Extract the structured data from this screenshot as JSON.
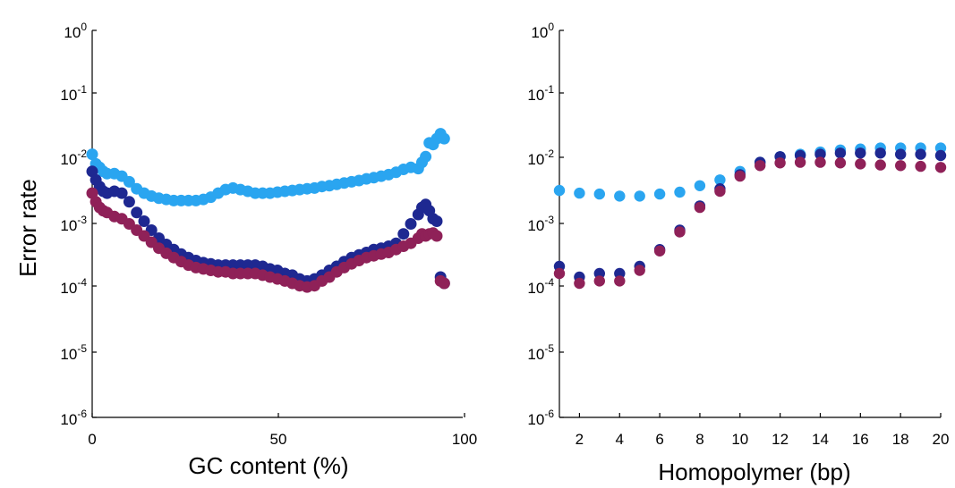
{
  "colors": {
    "light": "#2aa5f0",
    "dark": "#1e2891",
    "maroon": "#8f2158"
  },
  "ylabel": "Error rate",
  "chart_data": [
    {
      "type": "scatter",
      "xlabel": "GC content (%)",
      "ylabel": "Error rate",
      "yscale": "log",
      "xlim": [
        0,
        100
      ],
      "ylim": [
        1e-06,
        1
      ],
      "x_ticks": [
        "0",
        "50",
        "100"
      ],
      "y_ticks": [
        "10^0",
        "10^-1",
        "10^-2",
        "10^-3",
        "10^-4",
        "10^-5",
        "10^-6"
      ],
      "grid": false,
      "series": [
        {
          "color": "light",
          "points": [
            [
              0,
              0.012
            ],
            [
              1,
              0.0085
            ],
            [
              2,
              0.0075
            ],
            [
              3,
              0.0065
            ],
            [
              4,
              0.006
            ],
            [
              6,
              0.006
            ],
            [
              8,
              0.0055
            ],
            [
              10,
              0.0045
            ],
            [
              12,
              0.0035
            ],
            [
              14,
              0.003
            ],
            [
              16,
              0.0027
            ],
            [
              18,
              0.0025
            ],
            [
              20,
              0.0024
            ],
            [
              22,
              0.0023
            ],
            [
              24,
              0.0023
            ],
            [
              26,
              0.0023
            ],
            [
              28,
              0.0023
            ],
            [
              30,
              0.0024
            ],
            [
              32,
              0.0026
            ],
            [
              34,
              0.003
            ],
            [
              36,
              0.0034
            ],
            [
              38,
              0.0036
            ],
            [
              40,
              0.0034
            ],
            [
              42,
              0.0032
            ],
            [
              44,
              0.003
            ],
            [
              46,
              0.003
            ],
            [
              48,
              0.003
            ],
            [
              50,
              0.0031
            ],
            [
              52,
              0.0032
            ],
            [
              54,
              0.0033
            ],
            [
              56,
              0.0034
            ],
            [
              58,
              0.0035
            ],
            [
              60,
              0.0036
            ],
            [
              62,
              0.0038
            ],
            [
              64,
              0.0039
            ],
            [
              66,
              0.0041
            ],
            [
              68,
              0.0043
            ],
            [
              70,
              0.0045
            ],
            [
              72,
              0.0047
            ],
            [
              74,
              0.005
            ],
            [
              76,
              0.0052
            ],
            [
              78,
              0.0055
            ],
            [
              80,
              0.0058
            ],
            [
              82,
              0.0063
            ],
            [
              84,
              0.007
            ],
            [
              86,
              0.0075
            ],
            [
              88,
              0.0072
            ],
            [
              89,
              0.009
            ],
            [
              90,
              0.011
            ],
            [
              91,
              0.018
            ],
            [
              92,
              0.017
            ],
            [
              93,
              0.021
            ],
            [
              94,
              0.025
            ],
            [
              95,
              0.021
            ]
          ]
        },
        {
          "color": "dark",
          "points": [
            [
              0,
              0.0065
            ],
            [
              1,
              0.0048
            ],
            [
              2,
              0.0038
            ],
            [
              3,
              0.0032
            ],
            [
              4,
              0.003
            ],
            [
              6,
              0.0032
            ],
            [
              8,
              0.003
            ],
            [
              10,
              0.0022
            ],
            [
              12,
              0.0015
            ],
            [
              14,
              0.0011
            ],
            [
              16,
              0.0008
            ],
            [
              18,
              0.0006
            ],
            [
              20,
              0.00048
            ],
            [
              22,
              0.0004
            ],
            [
              24,
              0.00034
            ],
            [
              26,
              0.0003
            ],
            [
              28,
              0.00027
            ],
            [
              30,
              0.00025
            ],
            [
              32,
              0.00024
            ],
            [
              34,
              0.00023
            ],
            [
              36,
              0.00023
            ],
            [
              38,
              0.00023
            ],
            [
              40,
              0.00023
            ],
            [
              42,
              0.00023
            ],
            [
              44,
              0.00023
            ],
            [
              46,
              0.00022
            ],
            [
              48,
              0.0002
            ],
            [
              50,
              0.00019
            ],
            [
              52,
              0.00017
            ],
            [
              54,
              0.00016
            ],
            [
              56,
              0.00014
            ],
            [
              58,
              0.00013
            ],
            [
              60,
              0.00014
            ],
            [
              62,
              0.00016
            ],
            [
              64,
              0.00019
            ],
            [
              66,
              0.00022
            ],
            [
              68,
              0.00026
            ],
            [
              70,
              0.0003
            ],
            [
              72,
              0.00033
            ],
            [
              74,
              0.00036
            ],
            [
              76,
              0.0004
            ],
            [
              78,
              0.00042
            ],
            [
              80,
              0.00045
            ],
            [
              82,
              0.0005
            ],
            [
              84,
              0.0007
            ],
            [
              86,
              0.001
            ],
            [
              88,
              0.0014
            ],
            [
              89,
              0.0018
            ],
            [
              90,
              0.002
            ],
            [
              91,
              0.0016
            ],
            [
              92,
              0.0012
            ],
            [
              93,
              0.0011
            ],
            [
              94,
              0.00015
            ],
            [
              95,
              0.00012
            ]
          ]
        },
        {
          "color": "maroon",
          "points": [
            [
              0,
              0.003
            ],
            [
              1,
              0.0022
            ],
            [
              2,
              0.0018
            ],
            [
              3,
              0.0016
            ],
            [
              4,
              0.0015
            ],
            [
              6,
              0.0013
            ],
            [
              8,
              0.0012
            ],
            [
              10,
              0.001
            ],
            [
              12,
              0.0008
            ],
            [
              14,
              0.00065
            ],
            [
              16,
              0.00052
            ],
            [
              18,
              0.00042
            ],
            [
              20,
              0.00035
            ],
            [
              22,
              0.0003
            ],
            [
              24,
              0.00026
            ],
            [
              26,
              0.00023
            ],
            [
              28,
              0.00021
            ],
            [
              30,
              0.0002
            ],
            [
              32,
              0.00019
            ],
            [
              34,
              0.00018
            ],
            [
              36,
              0.00018
            ],
            [
              38,
              0.00017
            ],
            [
              40,
              0.00017
            ],
            [
              42,
              0.00017
            ],
            [
              44,
              0.00017
            ],
            [
              46,
              0.00016
            ],
            [
              48,
              0.00015
            ],
            [
              50,
              0.00014
            ],
            [
              52,
              0.00013
            ],
            [
              54,
              0.00012
            ],
            [
              56,
              0.00011
            ],
            [
              58,
              0.000105
            ],
            [
              60,
              0.00011
            ],
            [
              62,
              0.00013
            ],
            [
              64,
              0.00015
            ],
            [
              66,
              0.00018
            ],
            [
              68,
              0.00021
            ],
            [
              70,
              0.00024
            ],
            [
              72,
              0.00027
            ],
            [
              74,
              0.0003
            ],
            [
              76,
              0.00032
            ],
            [
              78,
              0.00034
            ],
            [
              80,
              0.00036
            ],
            [
              82,
              0.0004
            ],
            [
              84,
              0.00045
            ],
            [
              86,
              0.0005
            ],
            [
              88,
              0.0006
            ],
            [
              89,
              0.0007
            ],
            [
              90,
              0.00065
            ],
            [
              91,
              0.0007
            ],
            [
              92,
              0.00072
            ],
            [
              93,
              0.00065
            ],
            [
              94,
              0.00013
            ],
            [
              95,
              0.00012
            ]
          ]
        }
      ]
    },
    {
      "type": "scatter",
      "xlabel": "Homopolymer (bp)",
      "ylabel": "",
      "yscale": "log",
      "xlim": [
        1,
        20
      ],
      "ylim": [
        1e-06,
        1
      ],
      "x_ticks": [
        "2",
        "4",
        "6",
        "8",
        "10",
        "12",
        "14",
        "16",
        "18",
        "20"
      ],
      "y_ticks": [
        "10^0",
        "10^-1",
        "10^-2",
        "10^-3",
        "10^-4",
        "10^-5",
        "10^-6"
      ],
      "grid": false,
      "series": [
        {
          "color": "light",
          "points": [
            [
              1,
              0.0033
            ],
            [
              2,
              0.003
            ],
            [
              3,
              0.0029
            ],
            [
              4,
              0.0027
            ],
            [
              5,
              0.0027
            ],
            [
              6,
              0.0029
            ],
            [
              7,
              0.0031
            ],
            [
              8,
              0.0039
            ],
            [
              9,
              0.0048
            ],
            [
              10,
              0.0065
            ],
            [
              11,
              0.009
            ],
            [
              12,
              0.011
            ],
            [
              13,
              0.012
            ],
            [
              14,
              0.013
            ],
            [
              15,
              0.014
            ],
            [
              16,
              0.0145
            ],
            [
              17,
              0.015
            ],
            [
              18,
              0.015
            ],
            [
              19,
              0.015
            ],
            [
              20,
              0.015
            ]
          ]
        },
        {
          "color": "dark",
          "points": [
            [
              1,
              0.00022
            ],
            [
              2,
              0.00015
            ],
            [
              3,
              0.00017
            ],
            [
              4,
              0.00017
            ],
            [
              5,
              0.00022
            ],
            [
              6,
              0.0004
            ],
            [
              7,
              0.0008
            ],
            [
              8,
              0.0019
            ],
            [
              9,
              0.0035
            ],
            [
              10,
              0.0058
            ],
            [
              11,
              0.009
            ],
            [
              12,
              0.011
            ],
            [
              13,
              0.0115
            ],
            [
              14,
              0.012
            ],
            [
              15,
              0.0125
            ],
            [
              16,
              0.0125
            ],
            [
              17,
              0.0125
            ],
            [
              18,
              0.012
            ],
            [
              19,
              0.012
            ],
            [
              20,
              0.0115
            ]
          ]
        },
        {
          "color": "maroon",
          "points": [
            [
              1,
              0.00017
            ],
            [
              2,
              0.00012
            ],
            [
              3,
              0.00013
            ],
            [
              4,
              0.00013
            ],
            [
              5,
              0.00019
            ],
            [
              6,
              0.00038
            ],
            [
              7,
              0.00075
            ],
            [
              8,
              0.0018
            ],
            [
              9,
              0.0032
            ],
            [
              10,
              0.0055
            ],
            [
              11,
              0.008
            ],
            [
              12,
              0.0088
            ],
            [
              13,
              0.009
            ],
            [
              14,
              0.009
            ],
            [
              15,
              0.0088
            ],
            [
              16,
              0.0085
            ],
            [
              17,
              0.0082
            ],
            [
              18,
              0.008
            ],
            [
              19,
              0.0078
            ],
            [
              20,
              0.0075
            ]
          ]
        }
      ]
    }
  ]
}
